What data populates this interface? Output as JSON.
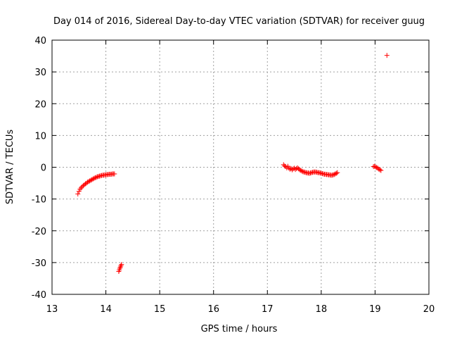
{
  "chart_data": {
    "type": "scatter",
    "title": "Day 014 of 2016, Sidereal Day-to-day VTEC variation (SDTVAR) for receiver guug",
    "xlabel": "GPS time / hours",
    "ylabel": "SDTVAR / TECUs",
    "xlim": [
      13,
      20
    ],
    "ylim": [
      -40,
      40
    ],
    "xticks": [
      "13",
      "14",
      "15",
      "16",
      "17",
      "18",
      "19",
      "20"
    ],
    "yticks": [
      "40",
      "30",
      "20",
      "10",
      "0",
      "-10",
      "-20",
      "-30",
      "-40"
    ],
    "grid": true,
    "marker": "+",
    "colors": {
      "series": "#ff0000",
      "grid": "#a0a0a0",
      "axis": "#000000"
    },
    "series": [
      {
        "values": [
          [
            13.48,
            -8.4
          ],
          [
            13.5,
            -7.6
          ],
          [
            13.52,
            -6.9
          ],
          [
            13.54,
            -6.5
          ],
          [
            13.56,
            -6.1
          ],
          [
            13.58,
            -5.8
          ],
          [
            13.6,
            -5.5
          ],
          [
            13.62,
            -5.2
          ],
          [
            13.64,
            -5.0
          ],
          [
            13.66,
            -4.7
          ],
          [
            13.68,
            -4.5
          ],
          [
            13.7,
            -4.3
          ],
          [
            13.72,
            -4.1
          ],
          [
            13.74,
            -3.9
          ],
          [
            13.76,
            -3.7
          ],
          [
            13.78,
            -3.5
          ],
          [
            13.8,
            -3.3
          ],
          [
            13.82,
            -3.2
          ],
          [
            13.84,
            -3.0
          ],
          [
            13.86,
            -2.9
          ],
          [
            13.88,
            -2.8
          ],
          [
            13.9,
            -2.7
          ],
          [
            13.92,
            -2.6
          ],
          [
            13.94,
            -2.5
          ],
          [
            13.96,
            -2.5
          ],
          [
            13.98,
            -2.4
          ],
          [
            14.0,
            -2.4
          ],
          [
            14.02,
            -2.3
          ],
          [
            14.04,
            -2.3
          ],
          [
            14.06,
            -2.2
          ],
          [
            14.08,
            -2.2
          ],
          [
            14.1,
            -2.2
          ],
          [
            14.12,
            -2.1
          ],
          [
            14.14,
            -2.1
          ],
          [
            14.16,
            -2.1
          ],
          [
            14.24,
            -32.8
          ],
          [
            14.25,
            -32.3
          ],
          [
            14.26,
            -31.8
          ],
          [
            14.27,
            -31.4
          ],
          [
            14.28,
            -31.0
          ],
          [
            14.29,
            -30.6
          ],
          [
            17.3,
            0.8
          ],
          [
            17.32,
            0.4
          ],
          [
            17.34,
            0.2
          ],
          [
            17.36,
            -0.2
          ],
          [
            17.38,
            0.3
          ],
          [
            17.4,
            -0.3
          ],
          [
            17.42,
            -0.6
          ],
          [
            17.44,
            -0.4
          ],
          [
            17.46,
            -0.8
          ],
          [
            17.48,
            -0.5
          ],
          [
            17.5,
            -0.3
          ],
          [
            17.52,
            -0.7
          ],
          [
            17.54,
            -0.4
          ],
          [
            17.56,
            -0.2
          ],
          [
            17.58,
            -0.5
          ],
          [
            17.6,
            -0.8
          ],
          [
            17.62,
            -1.0
          ],
          [
            17.64,
            -1.2
          ],
          [
            17.66,
            -1.4
          ],
          [
            17.68,
            -1.5
          ],
          [
            17.7,
            -1.6
          ],
          [
            17.72,
            -1.7
          ],
          [
            17.74,
            -1.8
          ],
          [
            17.76,
            -1.8
          ],
          [
            17.78,
            -1.9
          ],
          [
            17.8,
            -1.8
          ],
          [
            17.82,
            -1.7
          ],
          [
            17.84,
            -1.6
          ],
          [
            17.86,
            -1.5
          ],
          [
            17.88,
            -1.5
          ],
          [
            17.9,
            -1.5
          ],
          [
            17.92,
            -1.6
          ],
          [
            17.94,
            -1.7
          ],
          [
            17.96,
            -1.7
          ],
          [
            17.98,
            -1.8
          ],
          [
            18.0,
            -1.9
          ],
          [
            18.02,
            -2.0
          ],
          [
            18.04,
            -2.1
          ],
          [
            18.06,
            -2.2
          ],
          [
            18.08,
            -2.2
          ],
          [
            18.1,
            -2.3
          ],
          [
            18.12,
            -2.3
          ],
          [
            18.14,
            -2.4
          ],
          [
            18.16,
            -2.4
          ],
          [
            18.18,
            -2.5
          ],
          [
            18.2,
            -2.5
          ],
          [
            18.22,
            -2.4
          ],
          [
            18.24,
            -2.3
          ],
          [
            18.26,
            -2.1
          ],
          [
            18.28,
            -1.9
          ],
          [
            18.3,
            -1.7
          ],
          [
            18.97,
            0.2
          ],
          [
            18.99,
            0.3
          ],
          [
            19.01,
            0.1
          ],
          [
            19.03,
            -0.1
          ],
          [
            19.05,
            -0.3
          ],
          [
            19.07,
            -0.6
          ],
          [
            19.09,
            -0.8
          ],
          [
            19.11,
            -1.0
          ],
          [
            19.22,
            35.2
          ]
        ]
      }
    ]
  }
}
